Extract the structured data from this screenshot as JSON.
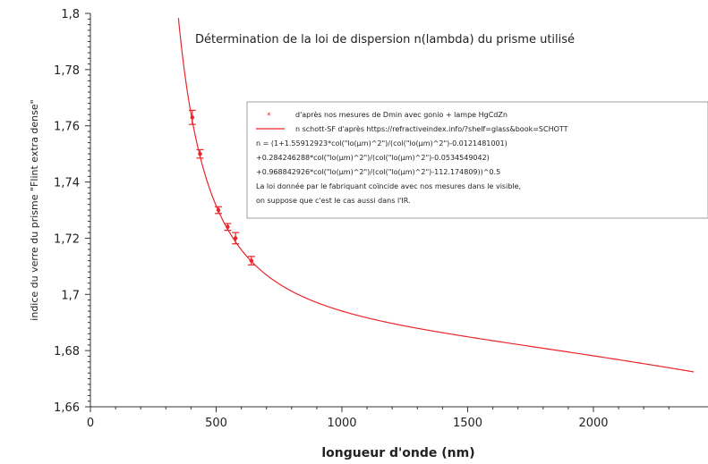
{
  "chart_data": {
    "type": "scatter",
    "title": "Détermination de la loi de dispersion n(lambda) du prisme utilisé",
    "xlabel": "longueur d'onde (nm)",
    "ylabel": "indice du verre du prisme \"Flint extra dense\"",
    "xlim": [
      0,
      2400
    ],
    "ylim": [
      1.66,
      1.8
    ],
    "x_ticks": [
      0,
      500,
      1000,
      1500,
      2000
    ],
    "x_tick_labels": [
      "0",
      "500",
      "1000",
      "1500",
      "2000"
    ],
    "y_ticks": [
      1.66,
      1.68,
      1.7,
      1.72,
      1.74,
      1.76,
      1.78,
      1.8
    ],
    "y_tick_labels": [
      "1,66",
      "1,68",
      "1,7",
      "1,72",
      "1,74",
      "1,76",
      "1,78",
      "1,8"
    ],
    "grid": false,
    "legend_position": "top-right",
    "colors": {
      "series": "#e8262a"
    },
    "series": [
      {
        "name": "d'après nos mesures de Dmin avec gonio + lampe HgCdZn",
        "kind": "points_with_errorbars",
        "points": [
          {
            "x": 405,
            "y": 1.763,
            "err": 0.0025
          },
          {
            "x": 436,
            "y": 1.75,
            "err": 0.0015
          },
          {
            "x": 509,
            "y": 1.73,
            "err": 0.0012
          },
          {
            "x": 546,
            "y": 1.724,
            "err": 0.0012
          },
          {
            "x": 577,
            "y": 1.72,
            "err": 0.002
          },
          {
            "x": 640,
            "y": 1.712,
            "err": 0.0015
          }
        ]
      },
      {
        "name": "n schott-SF d'après https://refractiveindex.info/?shelf=glass&book=SCHOTT",
        "kind": "sellmeier_curve",
        "B": [
          1.55912923,
          0.284246288,
          0.968842926
        ],
        "C": [
          0.0121481001,
          0.0534549042,
          112.174809
        ],
        "x_range": [
          350,
          2400
        ]
      }
    ],
    "annotations": [
      "n = (1+1.55912923*col(\"lo(µm)^2\")/(col(\"lo(µm)^2\")-0.0121481001)",
      "+0.284246288*col(\"lo(µm)^2\")/(col(\"lo(µm)^2\")-0.0534549042)",
      "+0.968842926*col(\"lo(µm)^2\")/(col(\"lo(µm)^2\")-112.174809))^0.5",
      "La loi donnée par le fabriquant coïncide avec nos mesures dans le visible,",
      "on suppose que c'est le cas aussi dans l'IR."
    ]
  }
}
